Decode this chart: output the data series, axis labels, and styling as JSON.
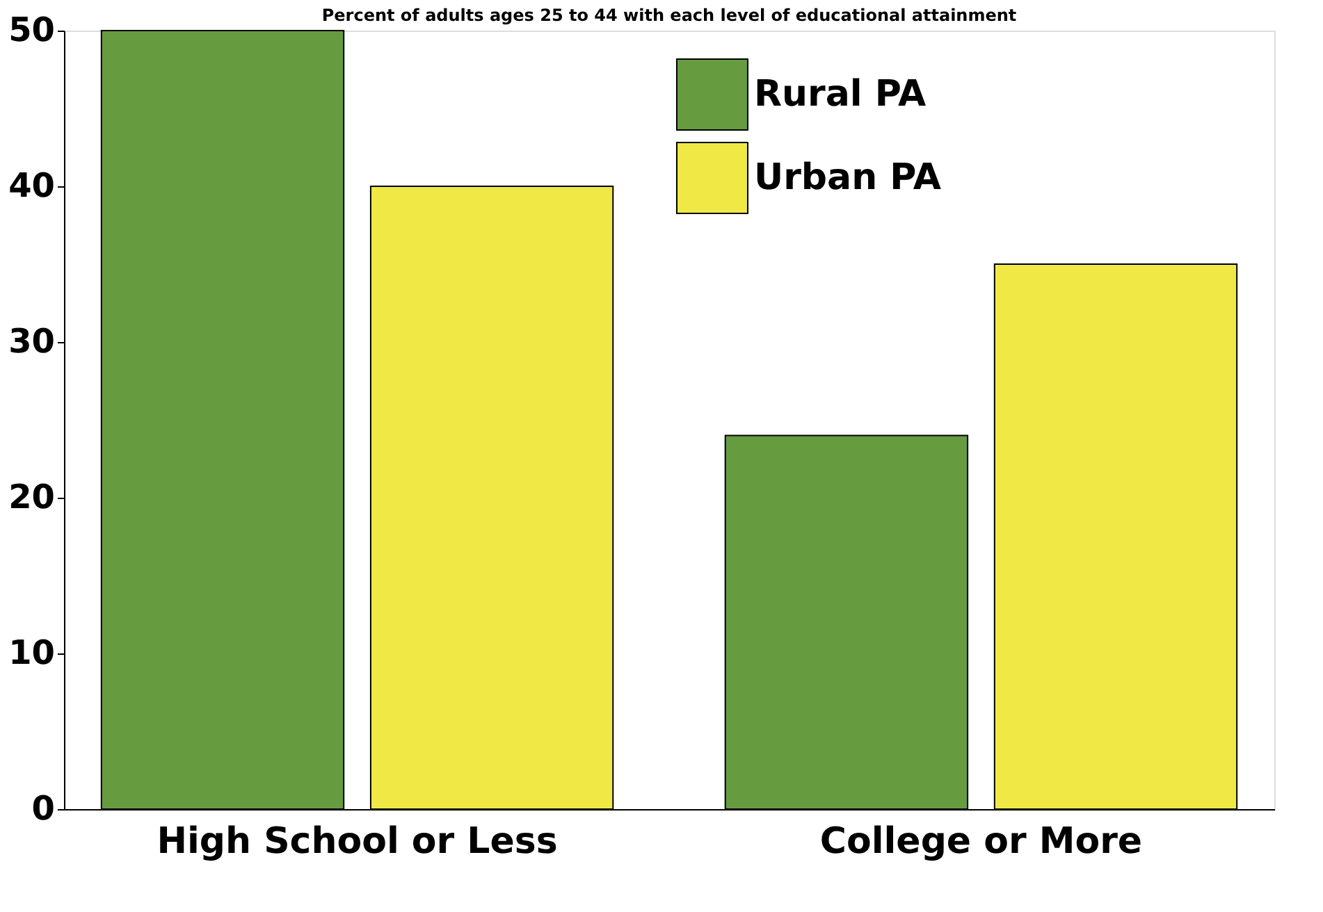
{
  "chart_data": {
    "type": "bar",
    "title": "Percent of adults ages 25 to 44 with each level of educational attainment",
    "categories": [
      "High School or Less",
      "College or More"
    ],
    "series": [
      {
        "name": "Rural PA",
        "color": "#669c3f",
        "values": [
          50,
          24
        ]
      },
      {
        "name": "Urban PA",
        "color": "#f0e844",
        "values": [
          40,
          35
        ]
      }
    ],
    "ylim": [
      0,
      50
    ],
    "yticks": [
      0,
      10,
      20,
      30,
      40,
      50
    ],
    "grid": false,
    "legend": "top right"
  }
}
